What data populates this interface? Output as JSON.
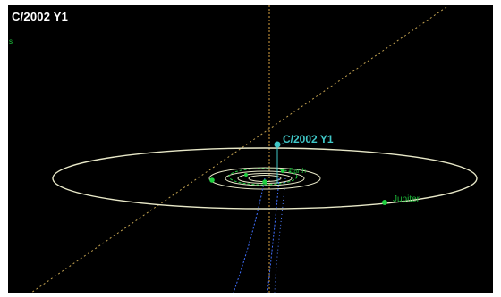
{
  "window": {
    "title": "C/2002 Y1",
    "corner_glyph": "s"
  },
  "scene": {
    "comet_label": "C/2002 Y1",
    "planet_label_outer": "Jupiter",
    "planet_label_inner": "Earth"
  },
  "colors": {
    "background": "#000000",
    "orbit": "#e8e8c8",
    "axis": "#d8a040",
    "comet": "#40c8c8",
    "planet": "#20d040",
    "trail": "#4070ff",
    "title": "#ffffff"
  },
  "icons": {
    "planet_marker": "filled-circle",
    "comet_marker": "filled-circle"
  }
}
